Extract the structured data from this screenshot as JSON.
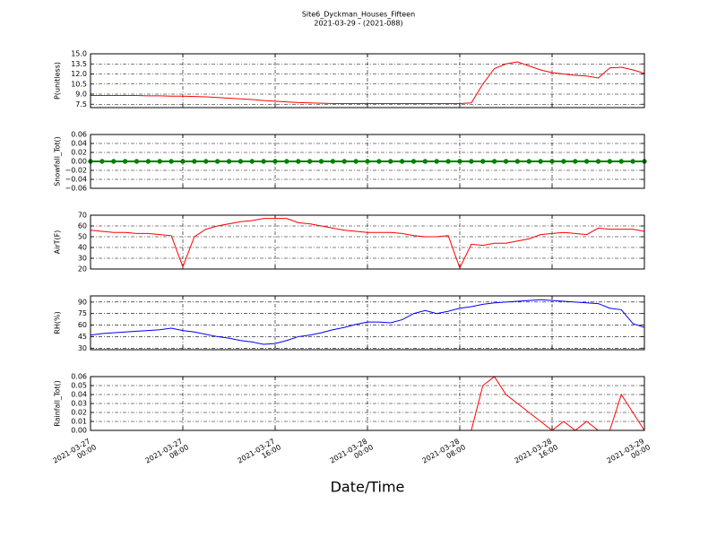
{
  "chart_data": [
    {
      "type": "line",
      "title": "Site6_Dyckman_Houses_Fifteen",
      "subtitle": "2021-03-29 - (2021-088)",
      "ylabel": "P(unitless)",
      "x": [
        "2021-03-27 00:00",
        "2021-03-27 01:00",
        "2021-03-27 02:00",
        "2021-03-27 03:00",
        "2021-03-27 04:00",
        "2021-03-27 05:00",
        "2021-03-27 06:00",
        "2021-03-27 07:00",
        "2021-03-27 08:00",
        "2021-03-27 09:00",
        "2021-03-27 10:00",
        "2021-03-27 11:00",
        "2021-03-27 12:00",
        "2021-03-27 13:00",
        "2021-03-27 14:00",
        "2021-03-27 15:00",
        "2021-03-27 16:00",
        "2021-03-27 17:00",
        "2021-03-27 18:00",
        "2021-03-27 19:00",
        "2021-03-27 20:00",
        "2021-03-27 21:00",
        "2021-03-27 22:00",
        "2021-03-27 23:00",
        "2021-03-28 00:00",
        "2021-03-28 01:00",
        "2021-03-28 02:00",
        "2021-03-28 03:00",
        "2021-03-28 04:00",
        "2021-03-28 05:00",
        "2021-03-28 06:00",
        "2021-03-28 07:00",
        "2021-03-28 08:00",
        "2021-03-28 09:00",
        "2021-03-28 10:00",
        "2021-03-28 11:00",
        "2021-03-28 12:00",
        "2021-03-28 13:00",
        "2021-03-28 14:00",
        "2021-03-28 15:00",
        "2021-03-28 16:00",
        "2021-03-28 17:00",
        "2021-03-28 18:00",
        "2021-03-28 19:00",
        "2021-03-28 20:00",
        "2021-03-28 21:00",
        "2021-03-28 22:00",
        "2021-03-28 23:00",
        "2021-03-29 00:00"
      ],
      "series": [
        {
          "color": "#ff0000",
          "values": [
            8.8,
            8.8,
            8.8,
            8.8,
            8.8,
            8.75,
            8.75,
            8.7,
            8.7,
            8.65,
            8.6,
            8.5,
            8.4,
            8.3,
            8.2,
            8.05,
            7.95,
            7.85,
            7.75,
            7.7,
            7.65,
            7.6,
            7.6,
            7.6,
            7.6,
            7.6,
            7.6,
            7.6,
            7.6,
            7.6,
            7.6,
            7.6,
            7.6,
            7.7,
            10.5,
            12.8,
            13.5,
            13.8,
            13.2,
            12.6,
            12.2,
            12.0,
            11.8,
            11.7,
            11.4,
            12.9,
            13.0,
            12.6,
            12.1
          ]
        }
      ],
      "xlim": [
        "2021-03-27 00:00",
        "2021-03-29 00:00"
      ],
      "xticks": [
        "2021-03-27 00:00",
        "2021-03-27 08:00",
        "2021-03-27 16:00",
        "2021-03-28 00:00",
        "2021-03-28 08:00",
        "2021-03-28 16:00",
        "2021-03-29 00:00"
      ],
      "ylim": [
        7,
        15
      ],
      "yticks": [
        7.5,
        {
          "value": 9,
          "label": "9.0"
        },
        10.5,
        {
          "value": 12,
          "label": "12.0"
        },
        13.5,
        {
          "value": 15,
          "label": "15.0"
        }
      ],
      "grid": true,
      "show_xtick_labels": false
    },
    {
      "type": "line",
      "ylabel": "Snowfall_Tot()",
      "x": [
        "2021-03-27 00:00",
        "2021-03-27 01:00",
        "2021-03-27 02:00",
        "2021-03-27 03:00",
        "2021-03-27 04:00",
        "2021-03-27 05:00",
        "2021-03-27 06:00",
        "2021-03-27 07:00",
        "2021-03-27 08:00",
        "2021-03-27 09:00",
        "2021-03-27 10:00",
        "2021-03-27 11:00",
        "2021-03-27 12:00",
        "2021-03-27 13:00",
        "2021-03-27 14:00",
        "2021-03-27 15:00",
        "2021-03-27 16:00",
        "2021-03-27 17:00",
        "2021-03-27 18:00",
        "2021-03-27 19:00",
        "2021-03-27 20:00",
        "2021-03-27 21:00",
        "2021-03-27 22:00",
        "2021-03-27 23:00",
        "2021-03-28 00:00",
        "2021-03-28 01:00",
        "2021-03-28 02:00",
        "2021-03-28 03:00",
        "2021-03-28 04:00",
        "2021-03-28 05:00",
        "2021-03-28 06:00",
        "2021-03-28 07:00",
        "2021-03-28 08:00",
        "2021-03-28 09:00",
        "2021-03-28 10:00",
        "2021-03-28 11:00",
        "2021-03-28 12:00",
        "2021-03-28 13:00",
        "2021-03-28 14:00",
        "2021-03-28 15:00",
        "2021-03-28 16:00",
        "2021-03-28 17:00",
        "2021-03-28 18:00",
        "2021-03-28 19:00",
        "2021-03-28 20:00",
        "2021-03-28 21:00",
        "2021-03-28 22:00",
        "2021-03-28 23:00",
        "2021-03-29 00:00"
      ],
      "series": [
        {
          "color": "#008000",
          "markers": true,
          "values": [
            0,
            0,
            0,
            0,
            0,
            0,
            0,
            0,
            0,
            0,
            0,
            0,
            0,
            0,
            0,
            0,
            0,
            0,
            0,
            0,
            0,
            0,
            0,
            0,
            0,
            0,
            0,
            0,
            0,
            0,
            0,
            0,
            0,
            0,
            0,
            0,
            0,
            0,
            0,
            0,
            0,
            0,
            0,
            0,
            0,
            0,
            0,
            0,
            0
          ]
        }
      ],
      "xlim": [
        "2021-03-27 00:00",
        "2021-03-29 00:00"
      ],
      "xticks": [
        "2021-03-27 00:00",
        "2021-03-27 08:00",
        "2021-03-27 16:00",
        "2021-03-28 00:00",
        "2021-03-28 08:00",
        "2021-03-28 16:00",
        "2021-03-29 00:00"
      ],
      "ylim": [
        -0.06,
        0.06
      ],
      "yticks": [
        {
          "value": -0.06,
          "label": "−0.06"
        },
        {
          "value": -0.04,
          "label": "−0.04"
        },
        {
          "value": -0.02,
          "label": "−0.02"
        },
        {
          "value": 0,
          "label": "0.00"
        },
        0.02,
        0.04,
        0.06
      ],
      "grid": true,
      "show_xtick_labels": false
    },
    {
      "type": "line",
      "ylabel": "AirT(F)",
      "x": [
        "2021-03-27 00:00",
        "2021-03-27 01:00",
        "2021-03-27 02:00",
        "2021-03-27 03:00",
        "2021-03-27 04:00",
        "2021-03-27 05:00",
        "2021-03-27 06:00",
        "2021-03-27 07:00",
        "2021-03-27 08:00",
        "2021-03-27 09:00",
        "2021-03-27 10:00",
        "2021-03-27 11:00",
        "2021-03-27 12:00",
        "2021-03-27 13:00",
        "2021-03-27 14:00",
        "2021-03-27 15:00",
        "2021-03-27 16:00",
        "2021-03-27 17:00",
        "2021-03-27 18:00",
        "2021-03-27 19:00",
        "2021-03-27 20:00",
        "2021-03-27 21:00",
        "2021-03-27 22:00",
        "2021-03-27 23:00",
        "2021-03-28 00:00",
        "2021-03-28 01:00",
        "2021-03-28 02:00",
        "2021-03-28 03:00",
        "2021-03-28 04:00",
        "2021-03-28 05:00",
        "2021-03-28 06:00",
        "2021-03-28 07:00",
        "2021-03-28 08:00",
        "2021-03-28 09:00",
        "2021-03-28 10:00",
        "2021-03-28 11:00",
        "2021-03-28 12:00",
        "2021-03-28 13:00",
        "2021-03-28 14:00",
        "2021-03-28 15:00",
        "2021-03-28 16:00",
        "2021-03-28 17:00",
        "2021-03-28 18:00",
        "2021-03-28 19:00",
        "2021-03-28 20:00",
        "2021-03-28 21:00",
        "2021-03-28 22:00",
        "2021-03-28 23:00",
        "2021-03-29 00:00"
      ],
      "series": [
        {
          "color": "#ff0000",
          "values": [
            56,
            55,
            54,
            54,
            53,
            53,
            52,
            51,
            22,
            50,
            57,
            60,
            62,
            64,
            65,
            67,
            67,
            67,
            63,
            62,
            60,
            58,
            56,
            55,
            54,
            54,
            54,
            53,
            51,
            50,
            50,
            51,
            21,
            43,
            42,
            44,
            44,
            46,
            48,
            52,
            53,
            54,
            53,
            52,
            58,
            57,
            57,
            57,
            55
          ]
        }
      ],
      "xlim": [
        "2021-03-27 00:00",
        "2021-03-29 00:00"
      ],
      "xticks": [
        "2021-03-27 00:00",
        "2021-03-27 08:00",
        "2021-03-27 16:00",
        "2021-03-28 00:00",
        "2021-03-28 08:00",
        "2021-03-28 16:00",
        "2021-03-29 00:00"
      ],
      "ylim": [
        20,
        70
      ],
      "yticks": [
        20,
        30,
        40,
        50,
        60,
        70
      ],
      "grid": true,
      "show_xtick_labels": false
    },
    {
      "type": "line",
      "ylabel": "RH(%)",
      "x": [
        "2021-03-27 00:00",
        "2021-03-27 01:00",
        "2021-03-27 02:00",
        "2021-03-27 03:00",
        "2021-03-27 04:00",
        "2021-03-27 05:00",
        "2021-03-27 06:00",
        "2021-03-27 07:00",
        "2021-03-27 08:00",
        "2021-03-27 09:00",
        "2021-03-27 10:00",
        "2021-03-27 11:00",
        "2021-03-27 12:00",
        "2021-03-27 13:00",
        "2021-03-27 14:00",
        "2021-03-27 15:00",
        "2021-03-27 16:00",
        "2021-03-27 17:00",
        "2021-03-27 18:00",
        "2021-03-27 19:00",
        "2021-03-27 20:00",
        "2021-03-27 21:00",
        "2021-03-27 22:00",
        "2021-03-27 23:00",
        "2021-03-28 00:00",
        "2021-03-28 01:00",
        "2021-03-28 02:00",
        "2021-03-28 03:00",
        "2021-03-28 04:00",
        "2021-03-28 05:00",
        "2021-03-28 06:00",
        "2021-03-28 07:00",
        "2021-03-28 08:00",
        "2021-03-28 09:00",
        "2021-03-28 10:00",
        "2021-03-28 11:00",
        "2021-03-28 12:00",
        "2021-03-28 13:00",
        "2021-03-28 14:00",
        "2021-03-28 15:00",
        "2021-03-28 16:00",
        "2021-03-28 17:00",
        "2021-03-28 18:00",
        "2021-03-28 19:00",
        "2021-03-28 20:00",
        "2021-03-28 21:00",
        "2021-03-28 22:00",
        "2021-03-28 23:00",
        "2021-03-29 00:00"
      ],
      "series": [
        {
          "color": "#0000ff",
          "values": [
            47,
            49,
            50,
            51,
            52,
            53,
            54,
            56,
            53,
            51,
            48,
            45,
            43,
            40,
            38,
            35,
            36,
            40,
            45,
            47,
            50,
            54,
            57,
            61,
            64,
            64,
            63,
            67,
            75,
            79,
            75,
            78,
            82,
            84,
            87,
            89,
            90,
            91,
            92,
            93,
            92,
            91,
            90,
            89,
            88,
            82,
            80,
            62,
            57
          ]
        }
      ],
      "xlim": [
        "2021-03-27 00:00",
        "2021-03-29 00:00"
      ],
      "xticks": [
        "2021-03-27 00:00",
        "2021-03-27 08:00",
        "2021-03-27 16:00",
        "2021-03-28 00:00",
        "2021-03-28 08:00",
        "2021-03-28 16:00",
        "2021-03-29 00:00"
      ],
      "ylim": [
        28,
        98
      ],
      "yticks": [
        30,
        45,
        60,
        75,
        90
      ],
      "grid": true,
      "show_xtick_labels": false
    },
    {
      "type": "line",
      "ylabel": "Rainfall_Tot()",
      "xlabel": "Date/Time",
      "x": [
        "2021-03-27 00:00",
        "2021-03-27 01:00",
        "2021-03-27 02:00",
        "2021-03-27 03:00",
        "2021-03-27 04:00",
        "2021-03-27 05:00",
        "2021-03-27 06:00",
        "2021-03-27 07:00",
        "2021-03-27 08:00",
        "2021-03-27 09:00",
        "2021-03-27 10:00",
        "2021-03-27 11:00",
        "2021-03-27 12:00",
        "2021-03-27 13:00",
        "2021-03-27 14:00",
        "2021-03-27 15:00",
        "2021-03-27 16:00",
        "2021-03-27 17:00",
        "2021-03-27 18:00",
        "2021-03-27 19:00",
        "2021-03-27 20:00",
        "2021-03-27 21:00",
        "2021-03-27 22:00",
        "2021-03-27 23:00",
        "2021-03-28 00:00",
        "2021-03-28 01:00",
        "2021-03-28 02:00",
        "2021-03-28 03:00",
        "2021-03-28 04:00",
        "2021-03-28 05:00",
        "2021-03-28 06:00",
        "2021-03-28 07:00",
        "2021-03-28 08:00",
        "2021-03-28 09:00",
        "2021-03-28 10:00",
        "2021-03-28 11:00",
        "2021-03-28 12:00",
        "2021-03-28 13:00",
        "2021-03-28 14:00",
        "2021-03-28 15:00",
        "2021-03-28 16:00",
        "2021-03-28 17:00",
        "2021-03-28 18:00",
        "2021-03-28 19:00",
        "2021-03-28 20:00",
        "2021-03-28 21:00",
        "2021-03-28 22:00",
        "2021-03-28 23:00",
        "2021-03-29 00:00"
      ],
      "series": [
        {
          "color": "#ff0000",
          "values": [
            0,
            0,
            0,
            0,
            0,
            0,
            0,
            0,
            0,
            0,
            0,
            0,
            0,
            0,
            0,
            0,
            0,
            0,
            0,
            0,
            0,
            0,
            0,
            0,
            0,
            0,
            0,
            0,
            0,
            0,
            0,
            0,
            0,
            0,
            0.05,
            0.06,
            0.04,
            0.03,
            0.02,
            0.01,
            0,
            0.01,
            0,
            0.01,
            0,
            0,
            0.04,
            0.02,
            0
          ]
        }
      ],
      "xlim": [
        "2021-03-27 00:00",
        "2021-03-29 00:00"
      ],
      "xticks": [
        "2021-03-27 00:00",
        "2021-03-27 08:00",
        "2021-03-27 16:00",
        "2021-03-28 00:00",
        "2021-03-28 08:00",
        "2021-03-28 16:00",
        "2021-03-29 00:00"
      ],
      "ylim": [
        0,
        0.06
      ],
      "yticks": [
        {
          "value": 0,
          "label": "0.00"
        },
        0.01,
        0.02,
        0.03,
        0.04,
        0.05,
        0.06
      ],
      "grid": true,
      "show_xtick_labels": true
    }
  ]
}
